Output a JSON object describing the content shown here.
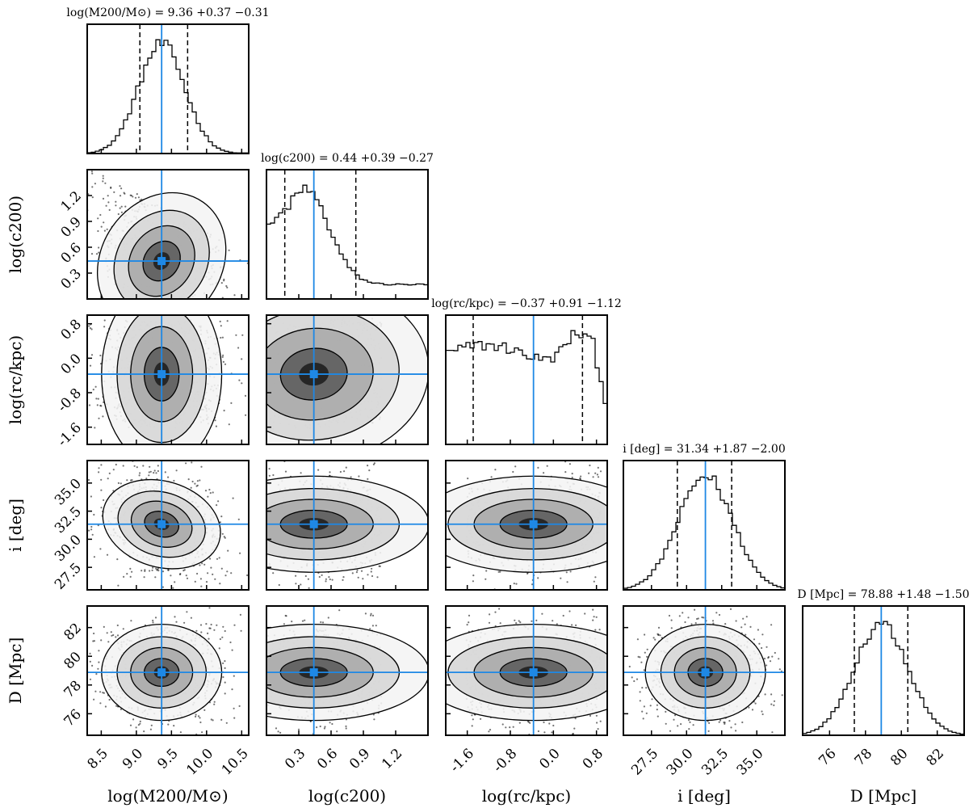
{
  "chart_data": {
    "type": "corner",
    "parameters": [
      {
        "key": "logM200",
        "label": "log(M200/M⊙)",
        "title": "log(M200/M⊙) = 9.36 +0.37 −0.31",
        "median": 9.36,
        "err_plus": 0.37,
        "err_minus": 0.31,
        "q16": 9.05,
        "q84": 9.73,
        "range": [
          8.3,
          10.6
        ],
        "ticks": [
          "8.5",
          "9.0",
          "9.5",
          "10.0",
          "10.5"
        ],
        "tick_values": [
          8.5,
          9.0,
          9.5,
          10.0,
          10.5
        ],
        "hist_shape": "gaussian",
        "hist_width": 0.33
      },
      {
        "key": "logc200",
        "label": "log(c200)",
        "title": "log(c200) = 0.44 +0.39 −0.27",
        "median": 0.44,
        "err_plus": 0.39,
        "err_minus": 0.27,
        "q16": 0.17,
        "q84": 0.83,
        "range": [
          0.0,
          1.5
        ],
        "ticks": [
          "0.3",
          "0.6",
          "0.9",
          "1.2"
        ],
        "tick_values": [
          0.3,
          0.6,
          0.9,
          1.2
        ],
        "hist_shape": "skewed"
      },
      {
        "key": "logrc",
        "label": "log(rc/kpc)",
        "title": "log(rc/kpc) = −0.37 +0.91 −1.12",
        "median": -0.37,
        "err_plus": 0.91,
        "err_minus": 1.12,
        "q16": -1.49,
        "q84": 0.54,
        "range": [
          -2.0,
          1.0
        ],
        "ticks": [
          "-1.6",
          "-0.8",
          "0.0",
          "0.8"
        ],
        "tick_values": [
          -1.6,
          -0.8,
          0.0,
          0.8
        ],
        "hist_shape": "flat"
      },
      {
        "key": "inc",
        "label": "i [deg]",
        "title": "i [deg] = 31.34 +1.87 −2.00",
        "median": 31.34,
        "err_plus": 1.87,
        "err_minus": 2.0,
        "q16": 29.34,
        "q84": 33.21,
        "range": [
          25.5,
          37.0
        ],
        "ticks": [
          "27.5",
          "30.0",
          "32.5",
          "35.0"
        ],
        "tick_values": [
          27.5,
          30.0,
          32.5,
          35.0
        ],
        "hist_shape": "gaussian",
        "hist_width": 1.95
      },
      {
        "key": "dist",
        "label": "D [Mpc]",
        "title": "D [Mpc] = 78.88 +1.48 −1.50",
        "median": 78.88,
        "err_plus": 1.48,
        "err_minus": 1.5,
        "q16": 77.38,
        "q84": 80.36,
        "range": [
          74.5,
          83.5
        ],
        "ticks": [
          "76",
          "78",
          "80",
          "82"
        ],
        "tick_values": [
          76,
          78,
          80,
          82
        ],
        "hist_shape": "gaussian",
        "hist_width": 1.5
      }
    ],
    "y_ticks": {
      "logc200": [
        "0.3",
        "0.6",
        "0.9",
        "1.2"
      ],
      "logrc": [
        "-1.6",
        "-0.8",
        "0.0",
        "0.8"
      ],
      "inc": [
        "27.5",
        "30.0",
        "32.5",
        "35.0"
      ],
      "dist": [
        "76",
        "78",
        "80",
        "82"
      ]
    },
    "truth_color": "#1e88e5",
    "quantile_line_style": "dashed"
  }
}
